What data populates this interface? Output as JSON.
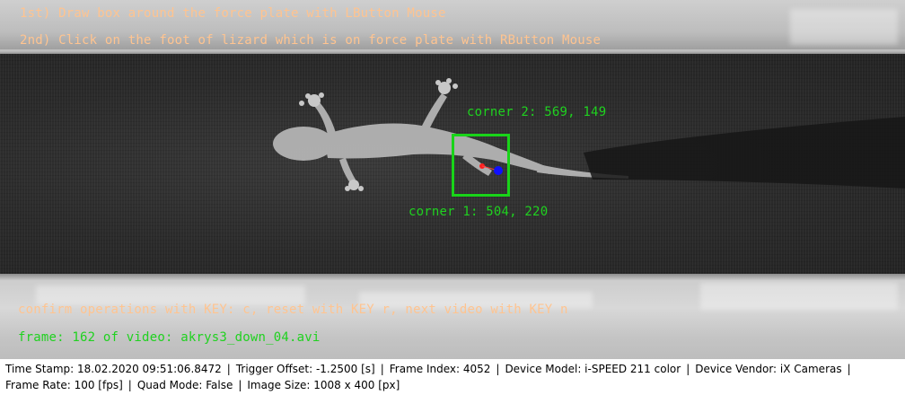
{
  "instructions": {
    "line1": "1st) Draw box around the force plate with LButton Mouse",
    "line2": "2nd) Click on the foot of lizard which is on force plate with RButton Mouse"
  },
  "annotations": {
    "corner2": "corner 2: 569, 149",
    "corner1": "corner 1: 504, 220"
  },
  "controls": {
    "confirm_text": "confirm operations with KEY: c, reset with KEY r, next video with KEY n"
  },
  "frame_info": "frame: 162 of video: akrys3_down_04.avi",
  "status": {
    "time_stamp": "Time Stamp: 18.02.2020 09:51:06.8472",
    "trigger_offset": "Trigger Offset: -1.2500 [s]",
    "frame_index": "Frame Index: 4052",
    "device_model": "Device Model: i-SPEED 211 color",
    "device_vendor": "Device Vendor: iX Cameras",
    "frame_rate": "Frame Rate: 100 [fps]",
    "quad_mode": "Quad Mode: False",
    "image_size": "Image Size: 1008 x 400 [px]"
  },
  "colors": {
    "instruction_text": "#ffc490",
    "annotation_text": "#1fd21f",
    "force_box": "#19d419",
    "foot_marker_red": "#ff2020",
    "foot_marker_blue": "#1010ff"
  }
}
